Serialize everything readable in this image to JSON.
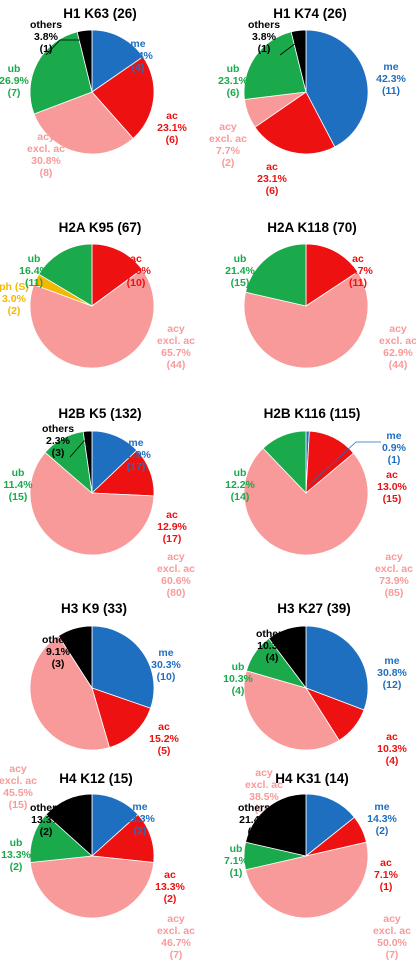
{
  "chart_data": [
    {
      "type": "pie",
      "title": "H1 K63 (26)",
      "slices": [
        {
          "name": "me",
          "percent": "15.4%",
          "count": "(4)",
          "value": 4,
          "color": "#1f6fc0"
        },
        {
          "name": "ac",
          "percent": "23.1%",
          "count": "(6)",
          "value": 6,
          "color": "#ee1111"
        },
        {
          "name": "acy excl. ac",
          "percent": "30.8%",
          "count": "(8)",
          "value": 8,
          "color": "#f99a9a"
        },
        {
          "name": "ub",
          "percent": "26.9%",
          "count": "(7)",
          "value": 7,
          "color": "#1aaa4c"
        },
        {
          "name": "others",
          "percent": "3.8%",
          "count": "(1)",
          "value": 1,
          "color": "#000000"
        }
      ]
    },
    {
      "type": "pie",
      "title": "H1 K74 (26)",
      "slices": [
        {
          "name": "me",
          "percent": "42.3%",
          "count": "(11)",
          "value": 11,
          "color": "#1f6fc0"
        },
        {
          "name": "ac",
          "percent": "23.1%",
          "count": "(6)",
          "value": 6,
          "color": "#ee1111"
        },
        {
          "name": "acy excl. ac",
          "percent": "7.7%",
          "count": "(2)",
          "value": 2,
          "color": "#f99a9a"
        },
        {
          "name": "ub",
          "percent": "23.1%",
          "count": "(6)",
          "value": 6,
          "color": "#1aaa4c"
        },
        {
          "name": "others",
          "percent": "3.8%",
          "count": "(1)",
          "value": 1,
          "color": "#000000"
        }
      ]
    },
    {
      "type": "pie",
      "title": "H2A K95 (67)",
      "slices": [
        {
          "name": "ac",
          "percent": "14.9%",
          "count": "(10)",
          "value": 10,
          "color": "#ee1111"
        },
        {
          "name": "acy excl. ac",
          "percent": "65.7%",
          "count": "(44)",
          "value": 44,
          "color": "#f99a9a"
        },
        {
          "name": "ph (S)",
          "percent": "3.0%",
          "count": "(2)",
          "value": 2,
          "color": "#f5b800"
        },
        {
          "name": "ub",
          "percent": "16.4%",
          "count": "(11)",
          "value": 11,
          "color": "#1aaa4c"
        }
      ]
    },
    {
      "type": "pie",
      "title": "H2A K118 (70)",
      "slices": [
        {
          "name": "ac",
          "percent": "15.7%",
          "count": "(11)",
          "value": 11,
          "color": "#ee1111"
        },
        {
          "name": "acy excl. ac",
          "percent": "62.9%",
          "count": "(44)",
          "value": 44,
          "color": "#f99a9a"
        },
        {
          "name": "ub",
          "percent": "21.4%",
          "count": "(15)",
          "value": 15,
          "color": "#1aaa4c"
        }
      ]
    },
    {
      "type": "pie",
      "title": "H2B K5 (132)",
      "slices": [
        {
          "name": "me",
          "percent": "12.9%",
          "count": "(17)",
          "value": 17,
          "color": "#1f6fc0"
        },
        {
          "name": "ac",
          "percent": "12.9%",
          "count": "(17)",
          "value": 17,
          "color": "#ee1111"
        },
        {
          "name": "acy excl. ac",
          "percent": "60.6%",
          "count": "(80)",
          "value": 80,
          "color": "#f99a9a"
        },
        {
          "name": "ub",
          "percent": "11.4%",
          "count": "(15)",
          "value": 15,
          "color": "#1aaa4c"
        },
        {
          "name": "others",
          "percent": "2.3%",
          "count": "(3)",
          "value": 3,
          "color": "#000000"
        }
      ]
    },
    {
      "type": "pie",
      "title": "H2B K116 (115)",
      "slices": [
        {
          "name": "me",
          "percent": "0.9%",
          "count": "(1)",
          "value": 1,
          "color": "#1f6fc0"
        },
        {
          "name": "ac",
          "percent": "13.0%",
          "count": "(15)",
          "value": 15,
          "color": "#ee1111"
        },
        {
          "name": "acy excl. ac",
          "percent": "73.9%",
          "count": "(85)",
          "value": 85,
          "color": "#f99a9a"
        },
        {
          "name": "ub",
          "percent": "12.2%",
          "count": "(14)",
          "value": 14,
          "color": "#1aaa4c"
        }
      ]
    },
    {
      "type": "pie",
      "title": "H3 K9 (33)",
      "slices": [
        {
          "name": "me",
          "percent": "30.3%",
          "count": "(10)",
          "value": 10,
          "color": "#1f6fc0"
        },
        {
          "name": "ac",
          "percent": "15.2%",
          "count": "(5)",
          "value": 5,
          "color": "#ee1111"
        },
        {
          "name": "acy excl. ac",
          "percent": "45.5%",
          "count": "(15)",
          "value": 15,
          "color": "#f99a9a"
        },
        {
          "name": "others",
          "percent": "9.1%",
          "count": "(3)",
          "value": 3,
          "color": "#000000"
        }
      ]
    },
    {
      "type": "pie",
      "title": "H3 K27 (39)",
      "slices": [
        {
          "name": "me",
          "percent": "30.8%",
          "count": "(12)",
          "value": 12,
          "color": "#1f6fc0"
        },
        {
          "name": "ac",
          "percent": "10.3%",
          "count": "(4)",
          "value": 4,
          "color": "#ee1111"
        },
        {
          "name": "acy excl. ac",
          "percent": "38.5%",
          "count": "(15)",
          "value": 15,
          "color": "#f99a9a"
        },
        {
          "name": "ub",
          "percent": "10.3%",
          "count": "(4)",
          "value": 4,
          "color": "#1aaa4c"
        },
        {
          "name": "others",
          "percent": "10.3%",
          "count": "(4)",
          "value": 4,
          "color": "#000000"
        }
      ]
    },
    {
      "type": "pie",
      "title": "H4 K12 (15)",
      "slices": [
        {
          "name": "me",
          "percent": "13.3%",
          "count": "(2)",
          "value": 2,
          "color": "#1f6fc0"
        },
        {
          "name": "ac",
          "percent": "13.3%",
          "count": "(2)",
          "value": 2,
          "color": "#ee1111"
        },
        {
          "name": "acy excl. ac",
          "percent": "46.7%",
          "count": "(7)",
          "value": 7,
          "color": "#f99a9a"
        },
        {
          "name": "ub",
          "percent": "13.3%",
          "count": "(2)",
          "value": 2,
          "color": "#1aaa4c"
        },
        {
          "name": "others",
          "percent": "13.3%",
          "count": "(2)",
          "value": 2,
          "color": "#000000"
        }
      ]
    },
    {
      "type": "pie",
      "title": "H4 K31 (14)",
      "slices": [
        {
          "name": "me",
          "percent": "14.3%",
          "count": "(2)",
          "value": 2,
          "color": "#1f6fc0"
        },
        {
          "name": "ac",
          "percent": "7.1%",
          "count": "(1)",
          "value": 1,
          "color": "#ee1111"
        },
        {
          "name": "acy excl. ac",
          "percent": "50.0%",
          "count": "(7)",
          "value": 7,
          "color": "#f99a9a"
        },
        {
          "name": "ub",
          "percent": "7.1%",
          "count": "(1)",
          "value": 1,
          "color": "#1aaa4c"
        },
        {
          "name": "others",
          "percent": "21.4%",
          "count": "(3)",
          "value": 3,
          "color": "#000000"
        }
      ]
    }
  ]
}
